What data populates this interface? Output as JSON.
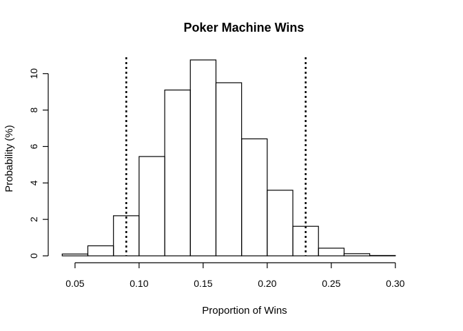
{
  "chart_data": {
    "type": "bar",
    "title": "Poker Machine Wins",
    "xlabel": "Proportion of Wins",
    "ylabel": "Probability (%)",
    "bins": [
      {
        "start": 0.04,
        "end": 0.06,
        "value": 0.1
      },
      {
        "start": 0.06,
        "end": 0.08,
        "value": 0.55
      },
      {
        "start": 0.08,
        "end": 0.1,
        "value": 2.2
      },
      {
        "start": 0.1,
        "end": 0.12,
        "value": 5.45
      },
      {
        "start": 0.12,
        "end": 0.14,
        "value": 9.1
      },
      {
        "start": 0.14,
        "end": 0.16,
        "value": 10.75
      },
      {
        "start": 0.16,
        "end": 0.18,
        "value": 9.5
      },
      {
        "start": 0.18,
        "end": 0.2,
        "value": 6.42
      },
      {
        "start": 0.2,
        "end": 0.22,
        "value": 3.6
      },
      {
        "start": 0.22,
        "end": 0.24,
        "value": 1.62
      },
      {
        "start": 0.24,
        "end": 0.26,
        "value": 0.42
      },
      {
        "start": 0.26,
        "end": 0.28,
        "value": 0.12
      },
      {
        "start": 0.28,
        "end": 0.3,
        "value": 0.02
      },
      {
        "start": 0.3,
        "end": 0.32,
        "value": 0.0
      }
    ],
    "reference_lines": [
      {
        "x": 0.09,
        "style": "dotted"
      },
      {
        "x": 0.23,
        "style": "dotted"
      }
    ],
    "xlim": [
      0.035,
      0.32
    ],
    "ylim": [
      0,
      11.05
    ],
    "x_ticks": [
      "0.05",
      "0.10",
      "0.15",
      "0.20",
      "0.25",
      "0.30"
    ],
    "y_ticks": [
      "0",
      "2",
      "4",
      "6",
      "8",
      "10"
    ],
    "grid": false,
    "legend": "none"
  }
}
